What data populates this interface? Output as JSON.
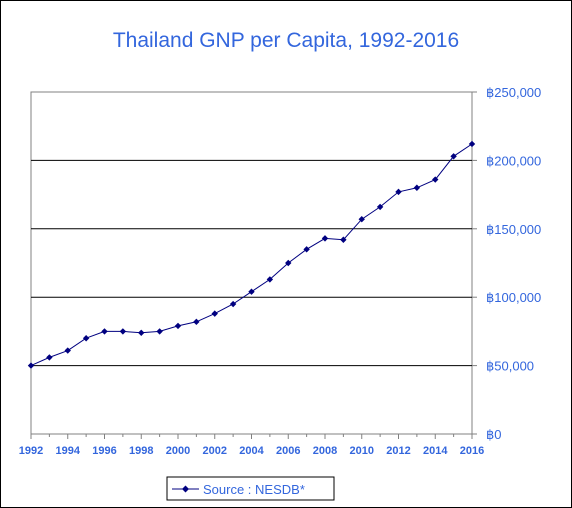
{
  "chart_data": {
    "type": "line",
    "title": "Thailand GNP per Capita,  1992-2016",
    "xlabel": "",
    "ylabel": "",
    "x": [
      1992,
      1993,
      1994,
      1995,
      1996,
      1997,
      1998,
      1999,
      2000,
      2001,
      2002,
      2003,
      2004,
      2005,
      2006,
      2007,
      2008,
      2009,
      2010,
      2011,
      2012,
      2013,
      2014,
      2015,
      2016
    ],
    "x_tick_labels": [
      "1992",
      "1994",
      "1996",
      "1998",
      "2000",
      "2002",
      "2004",
      "2006",
      "2008",
      "2010",
      "2012",
      "2014",
      "2016"
    ],
    "y_tick_labels": [
      "฿0",
      "฿50,000",
      "฿100,000",
      "฿150,000",
      "฿200,000",
      "฿250,000"
    ],
    "ylim": [
      0,
      250000
    ],
    "xlim": [
      1992,
      2016
    ],
    "grid": "horizontal",
    "legend": "bottom-center",
    "series": [
      {
        "name": "Source : NESDB*",
        "color": "#000080",
        "values": [
          50000,
          56000,
          61000,
          70000,
          75000,
          75000,
          74000,
          75000,
          79000,
          82000,
          88000,
          95000,
          104000,
          113000,
          125000,
          135000,
          143000,
          142000,
          157000,
          166000,
          177000,
          180000,
          186000,
          203000,
          212000
        ]
      }
    ]
  }
}
